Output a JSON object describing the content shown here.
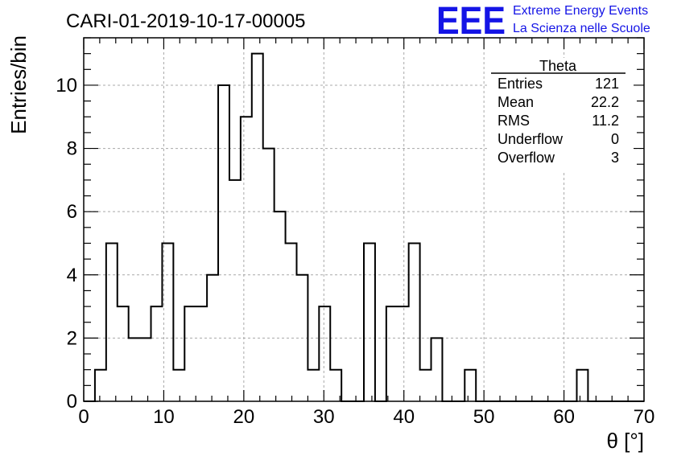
{
  "chart_data": {
    "type": "bar",
    "title": "CARI-01-2019-10-17-00005",
    "xlabel": "θ [°]",
    "ylabel": "Entries/bin",
    "xlim": [
      0,
      70
    ],
    "ylim": [
      0,
      11.5
    ],
    "bin_width": 1.4,
    "values": [
      0,
      1,
      5,
      3,
      2,
      2,
      3,
      5,
      1,
      3,
      3,
      4,
      10,
      7,
      9,
      11,
      8,
      6,
      5,
      4,
      1,
      3,
      1,
      0,
      0,
      5,
      0,
      3,
      3,
      5,
      1,
      2,
      0,
      0,
      1,
      0,
      0,
      0,
      0,
      0,
      0,
      0,
      0,
      0,
      1,
      0,
      0,
      0,
      0,
      0
    ],
    "x_ticks": [
      "0",
      "10",
      "20",
      "30",
      "40",
      "50",
      "60",
      "70"
    ],
    "y_ticks": [
      "0",
      "2",
      "4",
      "6",
      "8",
      "10"
    ],
    "grid": true,
    "stats_box": {
      "title": "Theta",
      "rows": [
        {
          "label": "Entries",
          "value": "121"
        },
        {
          "label": "Mean",
          "value": "22.2"
        },
        {
          "label": "RMS",
          "value": "11.2"
        },
        {
          "label": "Underflow",
          "value": "0"
        },
        {
          "label": "Overflow",
          "value": "3"
        }
      ],
      "placement": "top-right"
    },
    "logo": {
      "mark": "EEE",
      "line1": "Extreme Energy Events",
      "line2": "La Scienza nelle Scuole",
      "color": "#1414e6"
    }
  }
}
